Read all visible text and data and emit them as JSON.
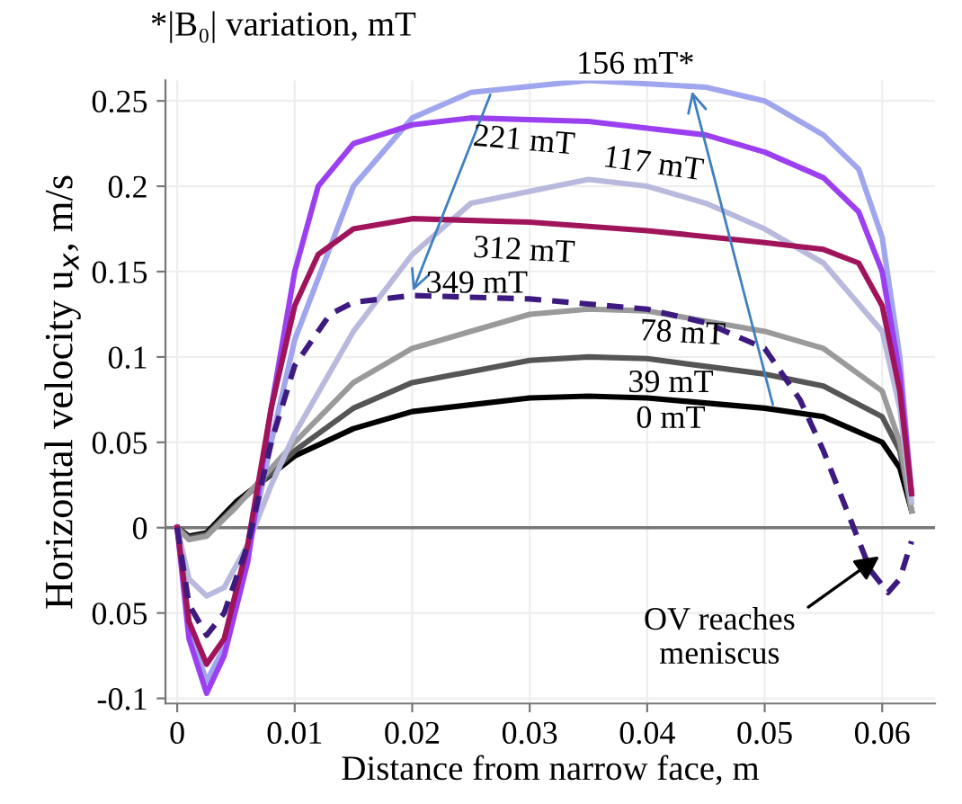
{
  "chart_data": {
    "type": "line",
    "title": "*|B₀| variation, mT",
    "xlabel": "Distance from narrow face, m",
    "ylabel": "Horizontal velocity u$_{x}$, m/s",
    "xlim": [
      -0.001,
      0.0645
    ],
    "ylim": [
      -0.103,
      0.262
    ],
    "xticks": [
      0,
      0.01,
      0.02,
      0.03,
      0.04,
      0.05,
      0.06
    ],
    "yticks": [
      -0.1,
      {
        "value": -0.05,
        "label": "0.05"
      },
      0,
      0.05,
      0.1,
      0.15,
      0.2,
      0.25
    ],
    "grid": true,
    "ref_lines": [
      {
        "axis": "y",
        "value": 0,
        "color": "#777777"
      }
    ],
    "series": [
      {
        "name": "0 mT",
        "color": "#000000",
        "x": [
          0,
          0.001,
          0.0025,
          0.005,
          0.01,
          0.015,
          0.02,
          0.03,
          0.035,
          0.04,
          0.05,
          0.055,
          0.06,
          0.0615,
          0.0625
        ],
        "values": [
          0,
          -0.005,
          -0.003,
          0.015,
          0.042,
          0.058,
          0.068,
          0.076,
          0.077,
          0.076,
          0.07,
          0.065,
          0.05,
          0.035,
          0.01
        ]
      },
      {
        "name": "39 mT",
        "color": "#555555",
        "x": [
          0,
          0.001,
          0.0025,
          0.005,
          0.01,
          0.015,
          0.02,
          0.03,
          0.035,
          0.04,
          0.05,
          0.055,
          0.06,
          0.0615,
          0.0625
        ],
        "values": [
          0,
          -0.006,
          -0.004,
          0.013,
          0.045,
          0.07,
          0.085,
          0.098,
          0.1,
          0.099,
          0.09,
          0.083,
          0.065,
          0.045,
          0.01
        ]
      },
      {
        "name": "78 mT",
        "color": "#9a9a9a",
        "x": [
          0,
          0.001,
          0.0025,
          0.005,
          0.01,
          0.015,
          0.02,
          0.03,
          0.035,
          0.04,
          0.05,
          0.055,
          0.06,
          0.0615,
          0.0625
        ],
        "values": [
          0,
          -0.007,
          -0.005,
          0.012,
          0.05,
          0.085,
          0.105,
          0.125,
          0.128,
          0.127,
          0.115,
          0.105,
          0.08,
          0.05,
          0.01
        ]
      },
      {
        "name": "117 mT",
        "color": "#b9b9dd",
        "x": [
          0,
          0.001,
          0.0025,
          0.004,
          0.006,
          0.008,
          0.01,
          0.015,
          0.02,
          0.025,
          0.035,
          0.04,
          0.045,
          0.05,
          0.055,
          0.06,
          0.0615,
          0.0625
        ],
        "values": [
          0,
          -0.03,
          -0.04,
          -0.035,
          -0.01,
          0.025,
          0.055,
          0.115,
          0.16,
          0.19,
          0.204,
          0.2,
          0.19,
          0.175,
          0.155,
          0.115,
          0.07,
          0.015
        ]
      },
      {
        "name": "156 mT*",
        "color": "#a0a6ee",
        "x": [
          0,
          0.001,
          0.0025,
          0.004,
          0.006,
          0.008,
          0.01,
          0.015,
          0.02,
          0.025,
          0.035,
          0.045,
          0.05,
          0.055,
          0.058,
          0.06,
          0.0615,
          0.0625
        ],
        "values": [
          0,
          -0.06,
          -0.09,
          -0.07,
          -0.015,
          0.05,
          0.11,
          0.2,
          0.24,
          0.255,
          0.262,
          0.258,
          0.25,
          0.23,
          0.21,
          0.17,
          0.1,
          0.02
        ]
      },
      {
        "name": "221 mT",
        "color": "#9b3ff0",
        "x": [
          0,
          0.001,
          0.0025,
          0.004,
          0.006,
          0.008,
          0.01,
          0.012,
          0.015,
          0.02,
          0.025,
          0.035,
          0.045,
          0.05,
          0.055,
          0.058,
          0.06,
          0.0615,
          0.0625
        ],
        "values": [
          0,
          -0.065,
          -0.097,
          -0.075,
          -0.02,
          0.07,
          0.15,
          0.2,
          0.225,
          0.236,
          0.24,
          0.238,
          0.23,
          0.22,
          0.205,
          0.185,
          0.15,
          0.09,
          0.02
        ]
      },
      {
        "name": "312 mT",
        "color": "#a0145c",
        "x": [
          0,
          0.001,
          0.0025,
          0.004,
          0.006,
          0.008,
          0.01,
          0.012,
          0.015,
          0.02,
          0.03,
          0.04,
          0.05,
          0.055,
          0.058,
          0.06,
          0.0615,
          0.0625
        ],
        "values": [
          0,
          -0.055,
          -0.08,
          -0.065,
          -0.01,
          0.07,
          0.13,
          0.16,
          0.175,
          0.181,
          0.179,
          0.174,
          0.167,
          0.163,
          0.155,
          0.13,
          0.08,
          0.02
        ]
      },
      {
        "name": "349 mT",
        "color": "#3d1a80",
        "line_style": "dashed",
        "x": [
          0,
          0.001,
          0.0025,
          0.004,
          0.006,
          0.008,
          0.01,
          0.013,
          0.015,
          0.02,
          0.03,
          0.04,
          0.045,
          0.05,
          0.053,
          0.055,
          0.057,
          0.059,
          0.0605,
          0.0615,
          0.0625
        ],
        "values": [
          0,
          -0.045,
          -0.063,
          -0.05,
          -0.01,
          0.05,
          0.095,
          0.125,
          0.132,
          0.136,
          0.134,
          0.128,
          0.12,
          0.105,
          0.075,
          0.045,
          0.01,
          -0.025,
          -0.038,
          -0.03,
          -0.008
        ]
      }
    ],
    "annotations": [
      "OV reaches\nmeniscus"
    ]
  }
}
